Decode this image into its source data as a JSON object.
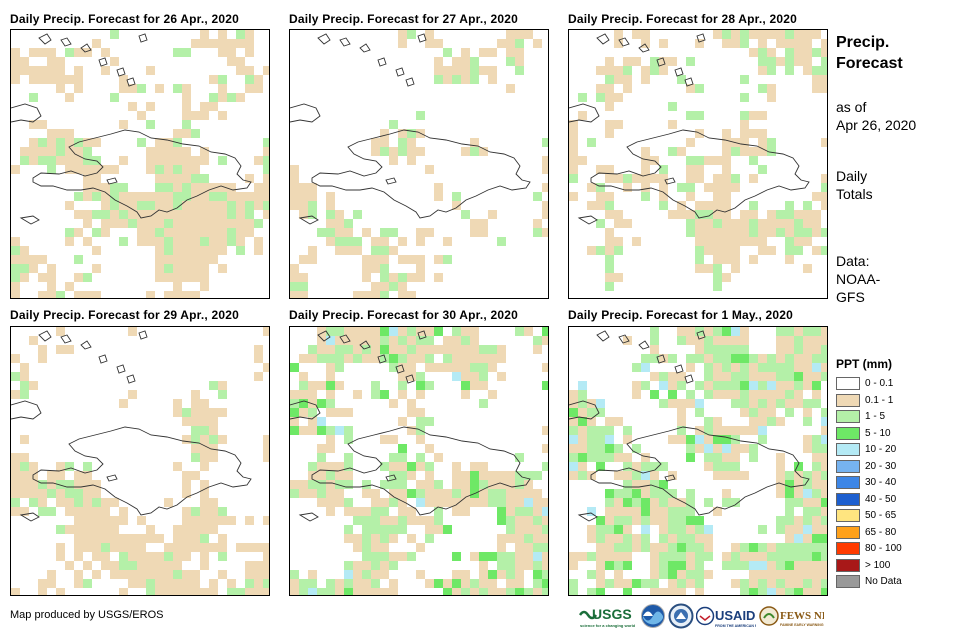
{
  "panels": [
    {
      "title": "Daily Precip. Forecast for 26 Apr., 2020",
      "wet": 0.45,
      "green": 0.22,
      "teal": 0.0
    },
    {
      "title": "Daily Precip. Forecast for 27 Apr., 2020",
      "wet": 0.4,
      "green": 0.22,
      "teal": 0.0
    },
    {
      "title": "Daily Precip. Forecast for 28 Apr., 2020",
      "wet": 0.45,
      "green": 0.3,
      "teal": 0.0
    },
    {
      "title": "Daily Precip. Forecast for 29 Apr., 2020",
      "wet": 0.45,
      "green": 0.2,
      "teal": 0.0
    },
    {
      "title": "Daily Precip. Forecast for 30 Apr., 2020",
      "wet": 0.5,
      "green": 0.4,
      "teal": 0.03
    },
    {
      "title": "Daily Precip. Forecast for 1 May., 2020",
      "wet": 0.6,
      "green": 0.55,
      "teal": 0.05
    }
  ],
  "side": {
    "title_line1": "Precip.",
    "title_line2": "Forecast",
    "asof_line1": "as of",
    "asof_line2": "Apr 26, 2020",
    "totals_line1": "Daily",
    "totals_line2": "Totals",
    "data_line1": "Data:",
    "data_line2": "NOAA-",
    "data_line3": "GFS"
  },
  "legend": {
    "title": "PPT (mm)",
    "items": [
      {
        "label": "0 - 0.1",
        "color": "#ffffff"
      },
      {
        "label": "0.1 - 1",
        "color": "#efd9b5"
      },
      {
        "label": "1 - 5",
        "color": "#b4f0a8"
      },
      {
        "label": "5 - 10",
        "color": "#6ee866"
      },
      {
        "label": "10 - 20",
        "color": "#b4eaf5"
      },
      {
        "label": "20 - 30",
        "color": "#76b3f0"
      },
      {
        "label": "30 - 40",
        "color": "#3d86e6"
      },
      {
        "label": "40 - 50",
        "color": "#1d5fcf"
      },
      {
        "label": "50 - 65",
        "color": "#ffe580"
      },
      {
        "label": "65 - 80",
        "color": "#ffa11a"
      },
      {
        "label": "80 - 100",
        "color": "#ff3b00"
      },
      {
        "label": "> 100",
        "color": "#a81818"
      },
      {
        "label": "No Data",
        "color": "#999999"
      }
    ]
  },
  "credit": "Map produced by USGS/EROS",
  "logos": [
    "USGS",
    "NOAA",
    "DOI",
    "USAID",
    "FEWS NET"
  ]
}
